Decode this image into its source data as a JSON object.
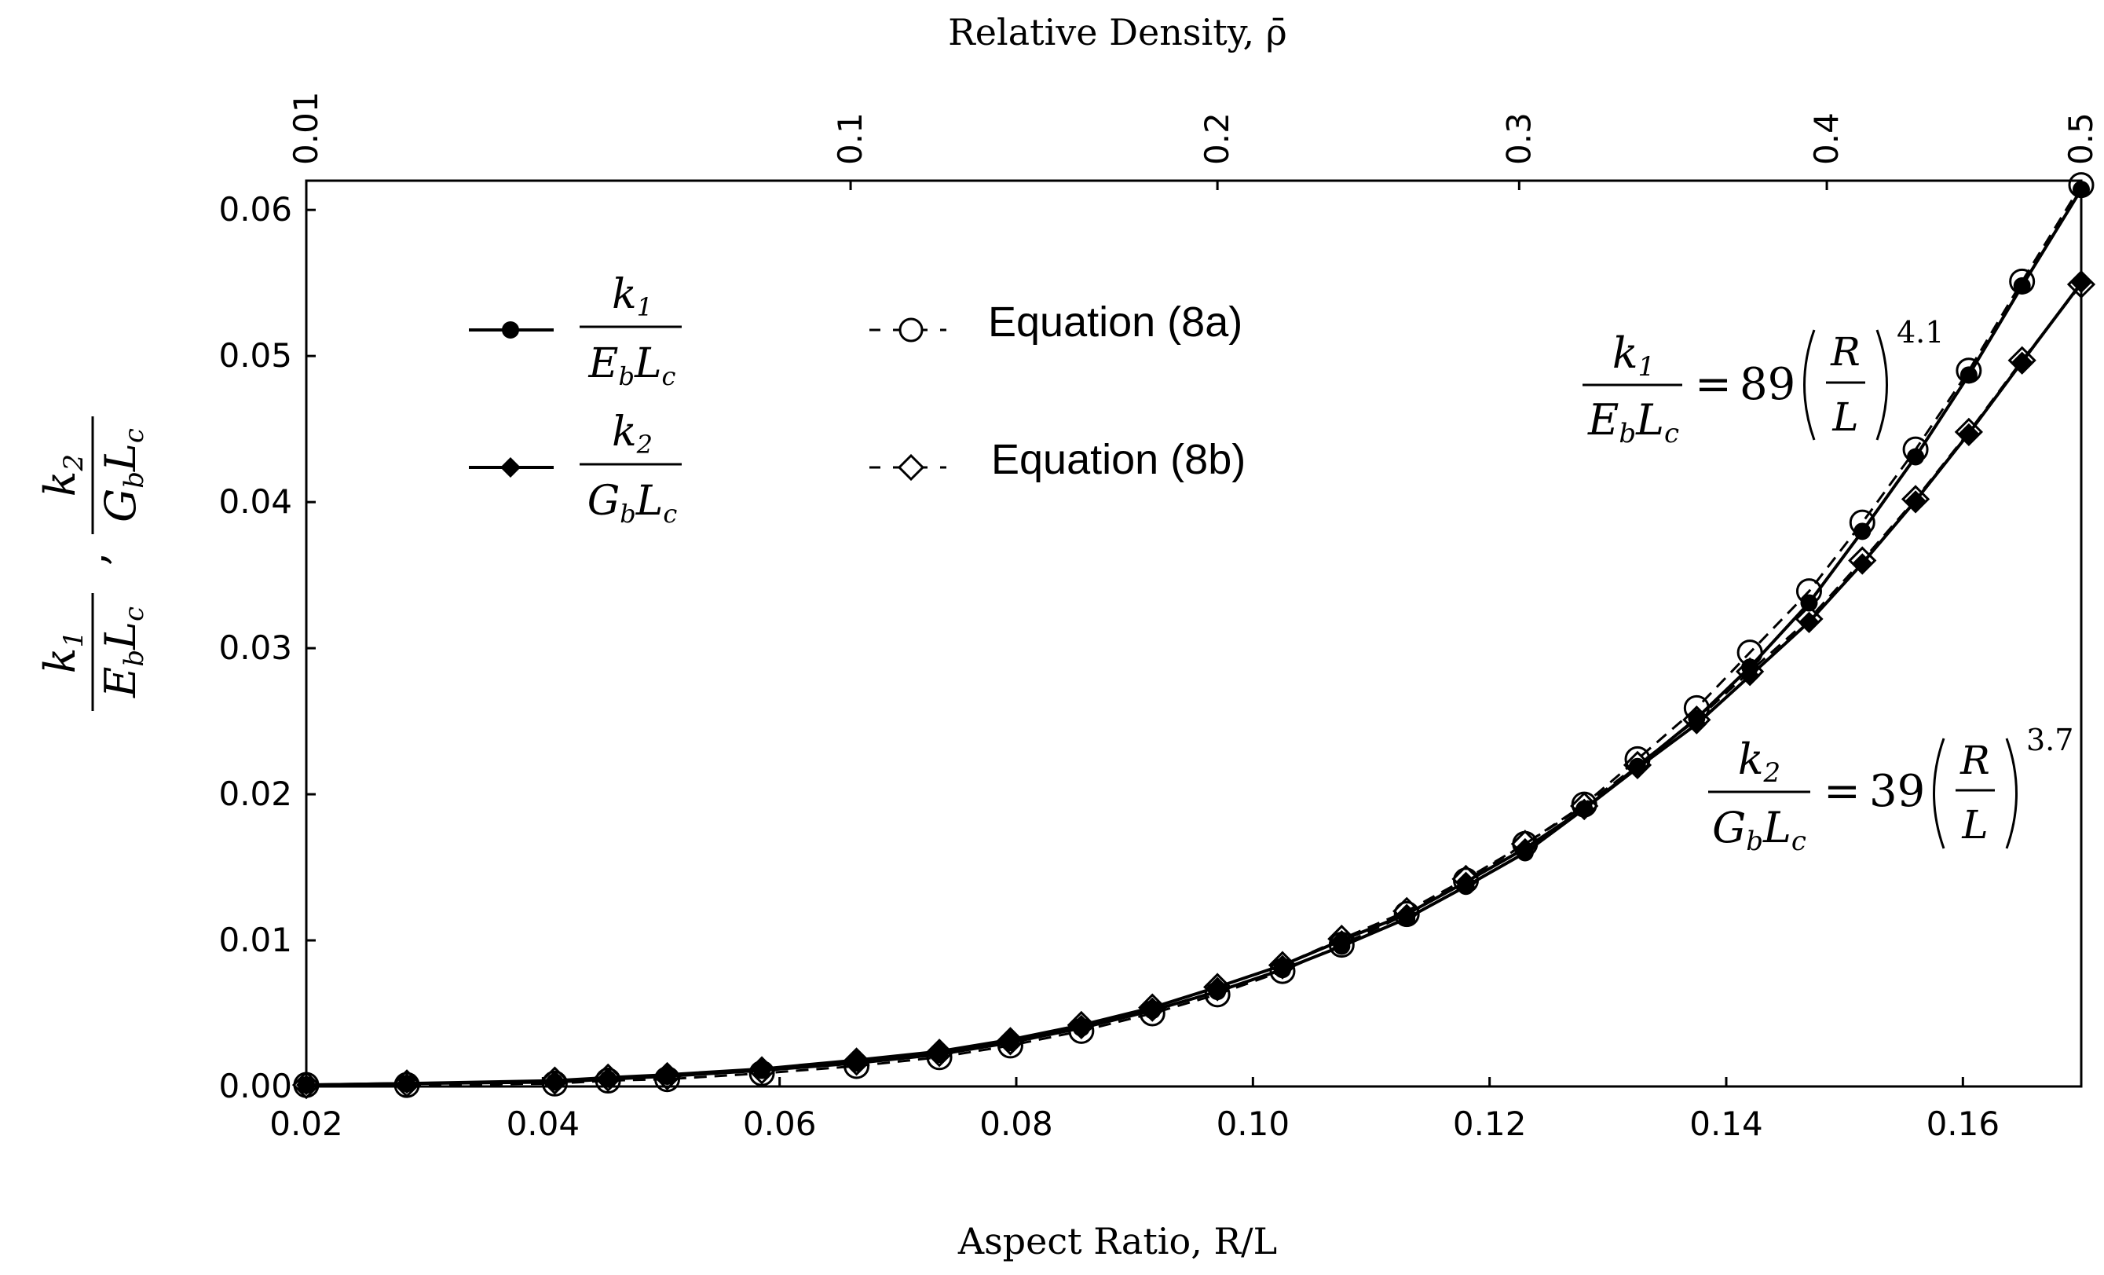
{
  "chart_data": {
    "type": "scatter",
    "xlabel": "Aspect Ratio, R/L",
    "x2label": "Relative Density, ρ̄",
    "ylabel": "k1 / (E_b L_c) , k2 / (G_b L_c)",
    "xlim": [
      0.02,
      0.17
    ],
    "ylim": [
      0,
      0.062
    ],
    "xticks": [
      "0.02",
      "0.04",
      "0.06",
      "0.08",
      "0.10",
      "0.12",
      "0.14",
      "0.16"
    ],
    "xtick_values": [
      0.02,
      0.04,
      0.06,
      0.08,
      0.1,
      0.12,
      0.14,
      0.16
    ],
    "yticks": [
      "0.00",
      "0.01",
      "0.02",
      "0.03",
      "0.04",
      "0.05",
      "0.06"
    ],
    "ytick_values": [
      0,
      0.01,
      0.02,
      0.03,
      0.04,
      0.05,
      0.06
    ],
    "top_ticks": [
      {
        "label": "0.01",
        "x": 0.02
      },
      {
        "label": "0.1",
        "x": 0.066
      },
      {
        "label": "0.2",
        "x": 0.097
      },
      {
        "label": "0.3",
        "x": 0.1225
      },
      {
        "label": "0.4",
        "x": 0.1485
      },
      {
        "label": "0.5",
        "x": 0.17
      }
    ],
    "x": [
      0.02,
      0.0285,
      0.041,
      0.0455,
      0.0505,
      0.0585,
      0.0665,
      0.0735,
      0.0795,
      0.0855,
      0.0915,
      0.097,
      0.1025,
      0.1075,
      0.113,
      0.118,
      0.123,
      0.128,
      0.1325,
      0.1375,
      0.142,
      0.147,
      0.1515,
      0.156,
      0.1605,
      0.165,
      0.17
    ],
    "series": [
      {
        "name": "k1/(E_b L_c)",
        "marker": "filled-circle",
        "line": "solid",
        "values": [
          0.0001,
          0.0002,
          0.0003,
          0.0005,
          0.0007,
          0.0011,
          0.0016,
          0.0022,
          0.003,
          0.004,
          0.0052,
          0.0065,
          0.008,
          0.0096,
          0.0115,
          0.0137,
          0.016,
          0.019,
          0.0219,
          0.0252,
          0.0287,
          0.0331,
          0.038,
          0.0431,
          0.0487,
          0.0548,
          0.0614
        ]
      },
      {
        "name": "k2/(G_b L_c)",
        "marker": "filled-diamond",
        "line": "solid",
        "values": [
          0.0001,
          0.0002,
          0.0004,
          0.0006,
          0.0008,
          0.0012,
          0.0018,
          0.0024,
          0.0032,
          0.0042,
          0.0054,
          0.0068,
          0.0083,
          0.01,
          0.0118,
          0.014,
          0.0163,
          0.019,
          0.0218,
          0.0248,
          0.0281,
          0.0318,
          0.0358,
          0.0401,
          0.0447,
          0.0496,
          0.055
        ]
      },
      {
        "name": "Equation (8a)",
        "marker": "open-circle",
        "line": "dashed",
        "values": [
          0.0001,
          0.0001,
          0.0002,
          0.0004,
          0.0005,
          0.0009,
          0.0014,
          0.002,
          0.0028,
          0.0038,
          0.005,
          0.0063,
          0.0079,
          0.0097,
          0.0118,
          0.0141,
          0.0166,
          0.0193,
          0.0224,
          0.0259,
          0.0297,
          0.0339,
          0.0386,
          0.0436,
          0.049,
          0.0551,
          0.0617
        ]
      },
      {
        "name": "Equation (8b)",
        "marker": "open-diamond",
        "line": "dashed",
        "values": [
          0.0001,
          0.0002,
          0.0004,
          0.0006,
          0.0007,
          0.0011,
          0.0017,
          0.0023,
          0.0031,
          0.0042,
          0.0054,
          0.0068,
          0.0083,
          0.0101,
          0.012,
          0.0142,
          0.0166,
          0.0192,
          0.022,
          0.0251,
          0.0284,
          0.032,
          0.036,
          0.0402,
          0.0448,
          0.0497,
          0.0549
        ]
      }
    ],
    "legend_labels": [
      "Equation (8a)",
      "Equation (8b)"
    ],
    "annotations": [
      {
        "text": "k1/(E_b L_c) = 89 (R/L)^4.1",
        "coef": "89",
        "exp": "4.1"
      },
      {
        "text": "k2/(G_b L_c) = 39 (R/L)^3.7",
        "coef": "39",
        "exp": "3.7"
      }
    ],
    "grid": false,
    "legend_position": "top-left"
  }
}
